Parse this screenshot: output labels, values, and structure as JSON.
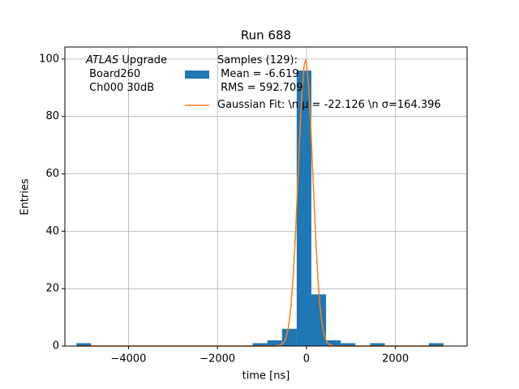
{
  "chart_data": {
    "type": "histogram",
    "title": "Run 688",
    "xlabel": "time [ns]",
    "ylabel": "Entries",
    "annotation": [
      "ATLAS",
      "Upgrade",
      "Board260",
      "Ch000 30dB"
    ],
    "xlim": [
      -5430,
      3610
    ],
    "ylim": [
      0,
      104.2
    ],
    "xticks": [
      {
        "value": -4000,
        "label": "−4000"
      },
      {
        "value": -2000,
        "label": "−2000"
      },
      0,
      2000
    ],
    "yticks": [
      0,
      20,
      40,
      60,
      80,
      100
    ],
    "grid": true,
    "series": [
      {
        "type": "histogram",
        "name": "Samples (129):\n Mean = -6.619\n RMS = 592.709",
        "color": "#1f77b4",
        "bins": [
          -5170,
          -4840,
          -4510,
          -4180,
          -3850,
          -3520,
          -3190,
          -2860,
          -2530,
          -2200,
          -1870,
          -1540,
          -1210,
          -880,
          -550,
          -220,
          110,
          440,
          770,
          1100,
          1430,
          1760,
          2090,
          2420,
          2750,
          3080
        ],
        "values": [
          1,
          0,
          0,
          0,
          0,
          0,
          0,
          0,
          0,
          0,
          0,
          0,
          1,
          2,
          6,
          96,
          18,
          2,
          1,
          0,
          1,
          0,
          0,
          0,
          1
        ]
      },
      {
        "type": "line",
        "name": "Gaussian Fit: \\n μ = -22.126 \\n σ=164.396",
        "color": "#ff7f0e",
        "x": [
          -5170,
          -1000,
          -700,
          -600,
          -500,
          -450,
          -400,
          -350,
          -300,
          -250,
          -200,
          -150,
          -100,
          -50,
          -22,
          0,
          50,
          100,
          150,
          200,
          250,
          300,
          350,
          400,
          450,
          500,
          600,
          700,
          1000,
          3080
        ],
        "values": [
          0,
          0,
          0.02,
          0.21,
          1.45,
          3.37,
          7.08,
          13.6,
          23.8,
          38.1,
          55.4,
          73.5,
          88.9,
          98.1,
          99.5,
          98.6,
          90.4,
          75.5,
          57.5,
          40.0,
          25.3,
          14.6,
          7.68,
          3.68,
          1.61,
          0.64,
          0.08,
          0.01,
          0,
          0
        ]
      }
    ]
  }
}
